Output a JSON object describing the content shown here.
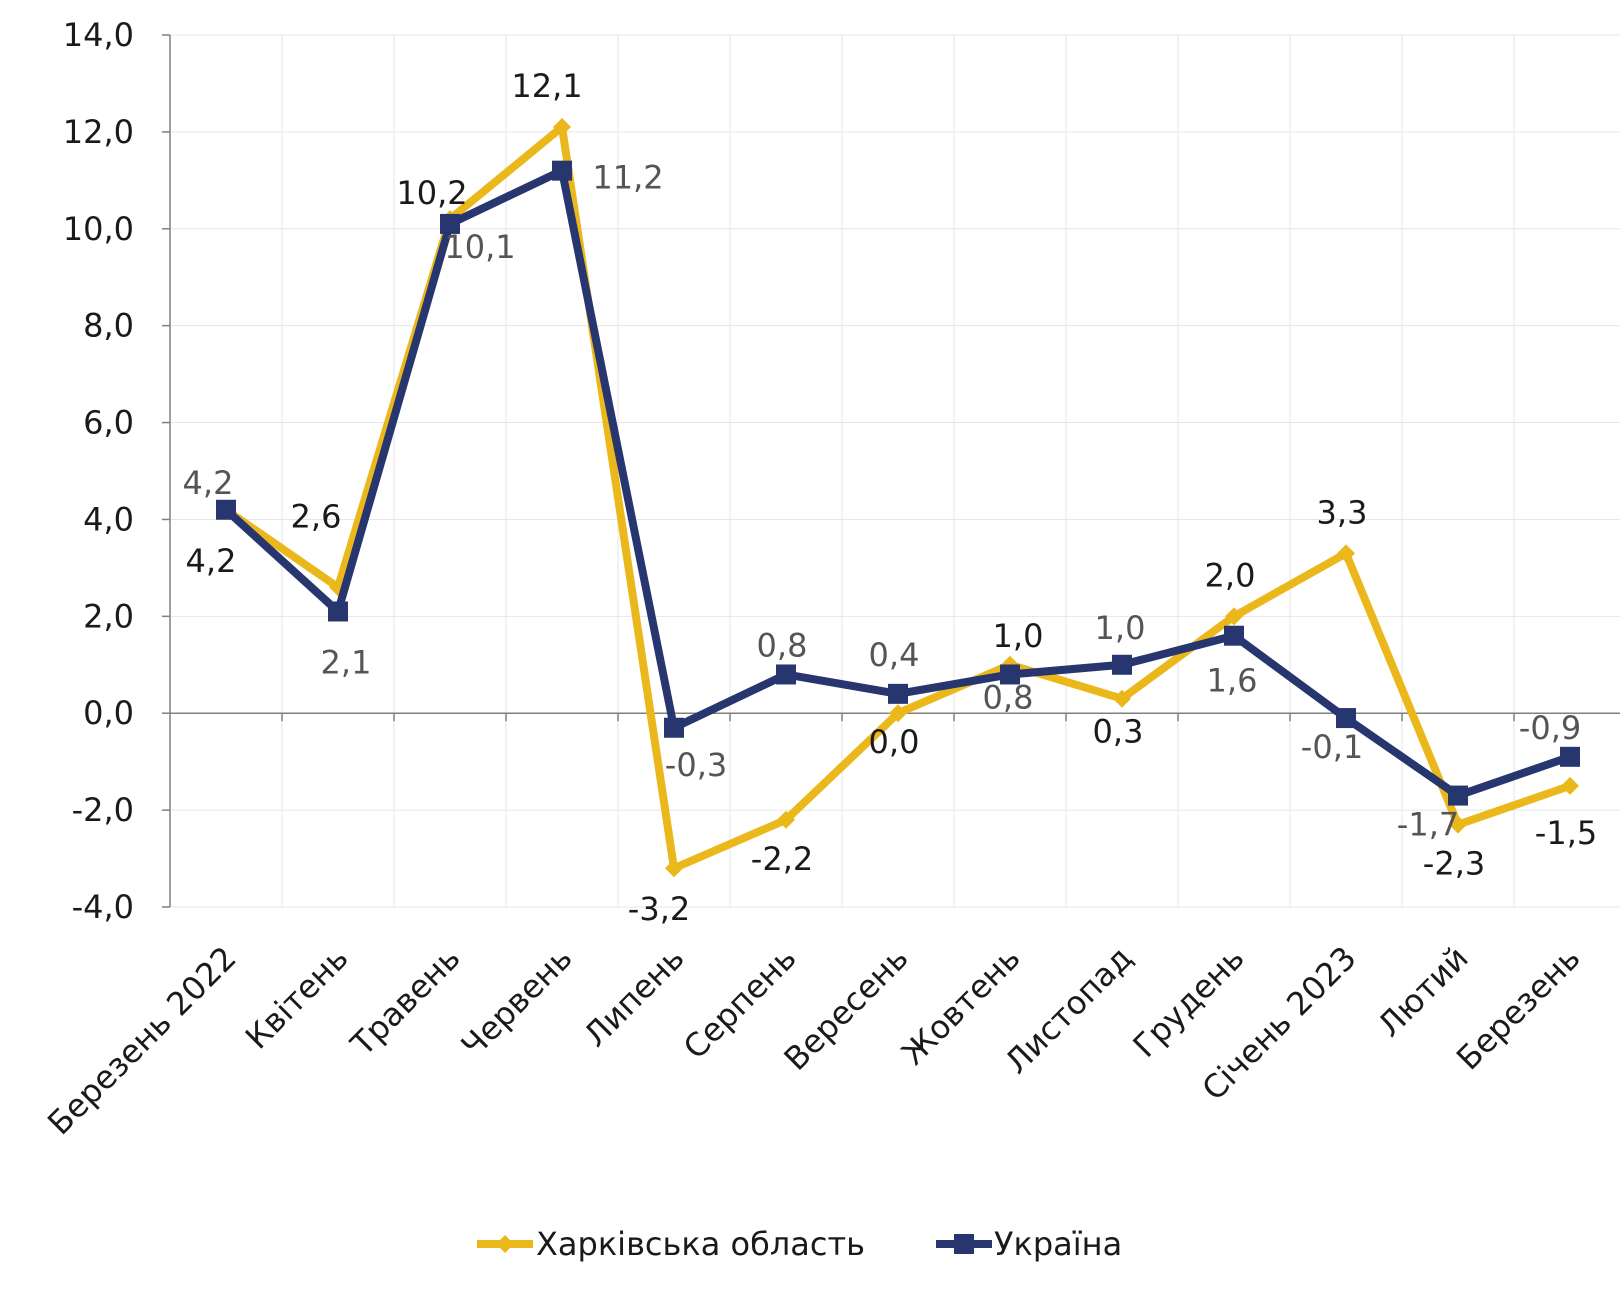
{
  "chart_data": {
    "type": "line",
    "title": "",
    "xlabel": "",
    "ylabel": "",
    "categories": [
      "Березень 2022",
      "Квітень",
      "Травень",
      "Червень",
      "Липень",
      "Серпень",
      "Вересень",
      "Жовтень",
      "Листопад",
      "Грудень",
      "Січень 2023",
      "Лютий",
      "Березень"
    ],
    "ylim": [
      -4.0,
      14.0
    ],
    "yticks": [
      "-4,0",
      "-2,0",
      "0,0",
      "2,0",
      "4,0",
      "6,0",
      "8,0",
      "10,0",
      "12,0",
      "14,0"
    ],
    "grid": true,
    "legend_position": "bottom",
    "series": [
      {
        "name": "Харківська область",
        "color": "#ebb81c",
        "marker": "diamond",
        "values": [
          4.2,
          2.6,
          10.2,
          12.1,
          -3.2,
          -2.2,
          0.0,
          1.0,
          0.3,
          2.0,
          3.3,
          -2.3,
          -1.5
        ],
        "labels": [
          "4,2",
          "2,6",
          "10,2",
          "12,1",
          "-3,2",
          "-2,2",
          "0,0",
          "1,0",
          "0,3",
          "2,0",
          "3,3",
          "-2,3",
          "-1,5"
        ]
      },
      {
        "name": "Україна",
        "color": "#283670",
        "marker": "square",
        "values": [
          4.2,
          2.1,
          10.1,
          11.2,
          -0.3,
          0.8,
          0.4,
          0.8,
          1.0,
          1.6,
          -0.1,
          -1.7,
          -0.9
        ],
        "labels": [
          "4,2",
          "2,1",
          "10,1",
          "11,2",
          "-0,3",
          "0,8",
          "0,4",
          "0,8",
          "1,0",
          "1,6",
          "-0,1",
          "-1,7",
          "-0,9"
        ]
      }
    ]
  }
}
